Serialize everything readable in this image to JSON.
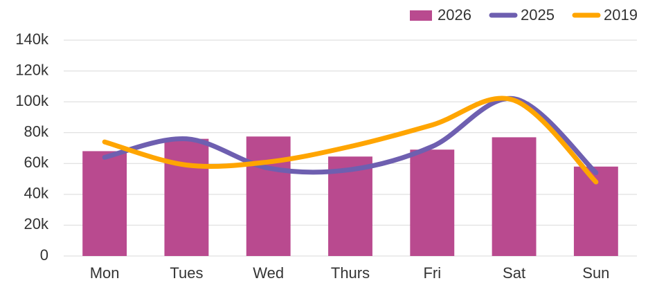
{
  "chart_data": {
    "type": "bar_line",
    "categories": [
      "Mon",
      "Tues",
      "Wed",
      "Thurs",
      "Fri",
      "Sat",
      "Sun"
    ],
    "series": [
      {
        "name": "2026",
        "type": "bar",
        "color": "#b94a8f",
        "values": [
          68000,
          76000,
          77500,
          64500,
          69000,
          77000,
          58000
        ]
      },
      {
        "name": "2025",
        "type": "line",
        "color": "#6e5fb0",
        "values": [
          64000,
          76000,
          57000,
          56000,
          71000,
          102000,
          54000
        ]
      },
      {
        "name": "2019",
        "type": "line",
        "color": "#ffa500",
        "values": [
          74000,
          59000,
          61000,
          71000,
          85000,
          101000,
          48000
        ]
      }
    ],
    "ylim": [
      0,
      140000
    ],
    "yticks": [
      {
        "value": 0,
        "label": "0"
      },
      {
        "value": 20000,
        "label": "20k"
      },
      {
        "value": 40000,
        "label": "40k"
      },
      {
        "value": 60000,
        "label": "60k"
      },
      {
        "value": 80000,
        "label": "80k"
      },
      {
        "value": 100000,
        "label": "100k"
      },
      {
        "value": 120000,
        "label": "120k"
      },
      {
        "value": 140000,
        "label": "140k"
      }
    ],
    "grid": true,
    "smooth": true,
    "legend": "top-right"
  }
}
